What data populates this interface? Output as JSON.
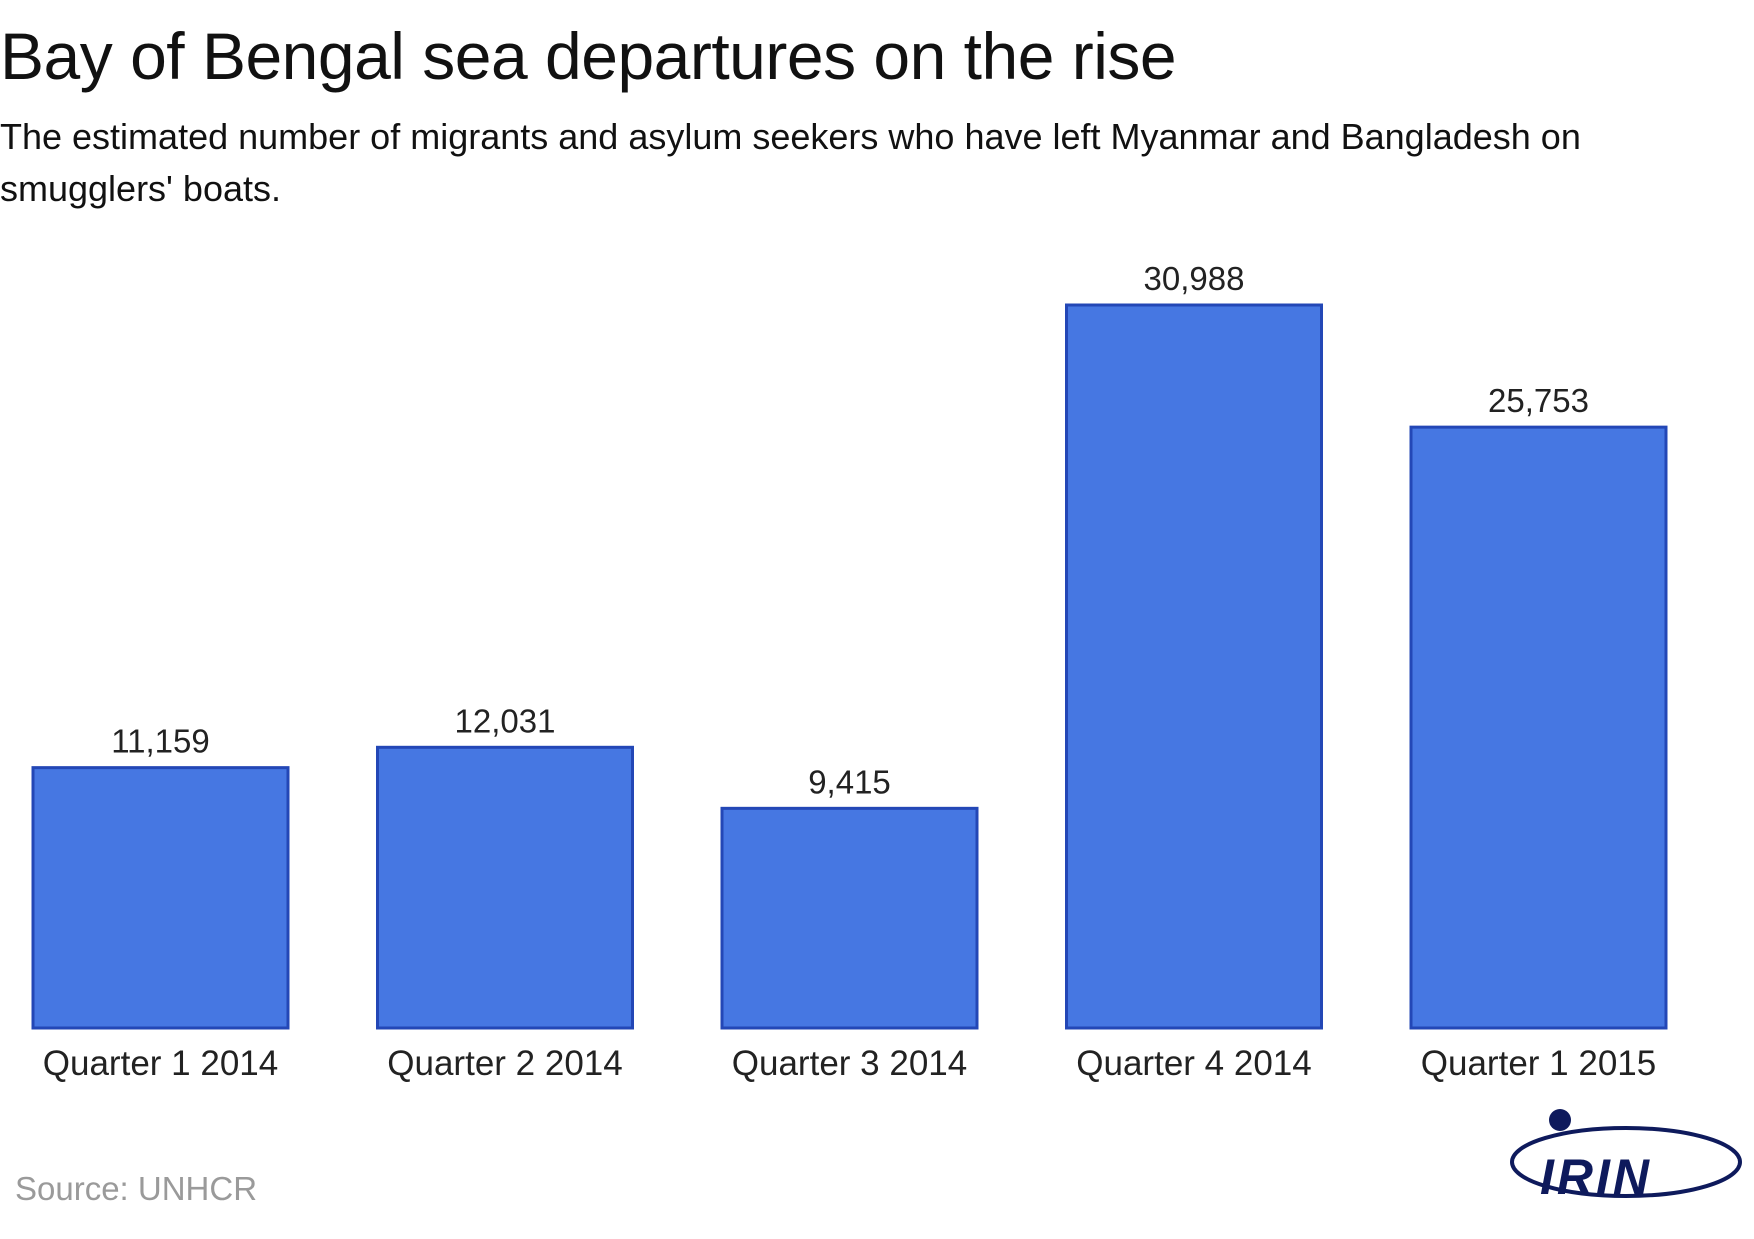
{
  "header": {
    "title": "Bay of Bengal sea departures on the rise",
    "subtitle": "The estimated number of migrants and asylum seekers who have left Myanmar and Bangladesh on smugglers' boats."
  },
  "chart_data": {
    "type": "bar",
    "categories": [
      "Quarter 1 2014",
      "Quarter 2 2014",
      "Quarter 3 2014",
      "Quarter 4 2014",
      "Quarter 1 2015"
    ],
    "values": [
      11159,
      12031,
      9415,
      30988,
      25753
    ],
    "value_labels": [
      "11,159",
      "12,031",
      "9,415",
      "30,988",
      "25,753"
    ],
    "grid": false,
    "legend": false,
    "bar_color": "#4677e2",
    "bar_border_color": "#2347b6"
  },
  "footer": {
    "source": "Source: UNHCR",
    "logo_text": "IRIN",
    "logo_color": "#0e1a5c"
  }
}
